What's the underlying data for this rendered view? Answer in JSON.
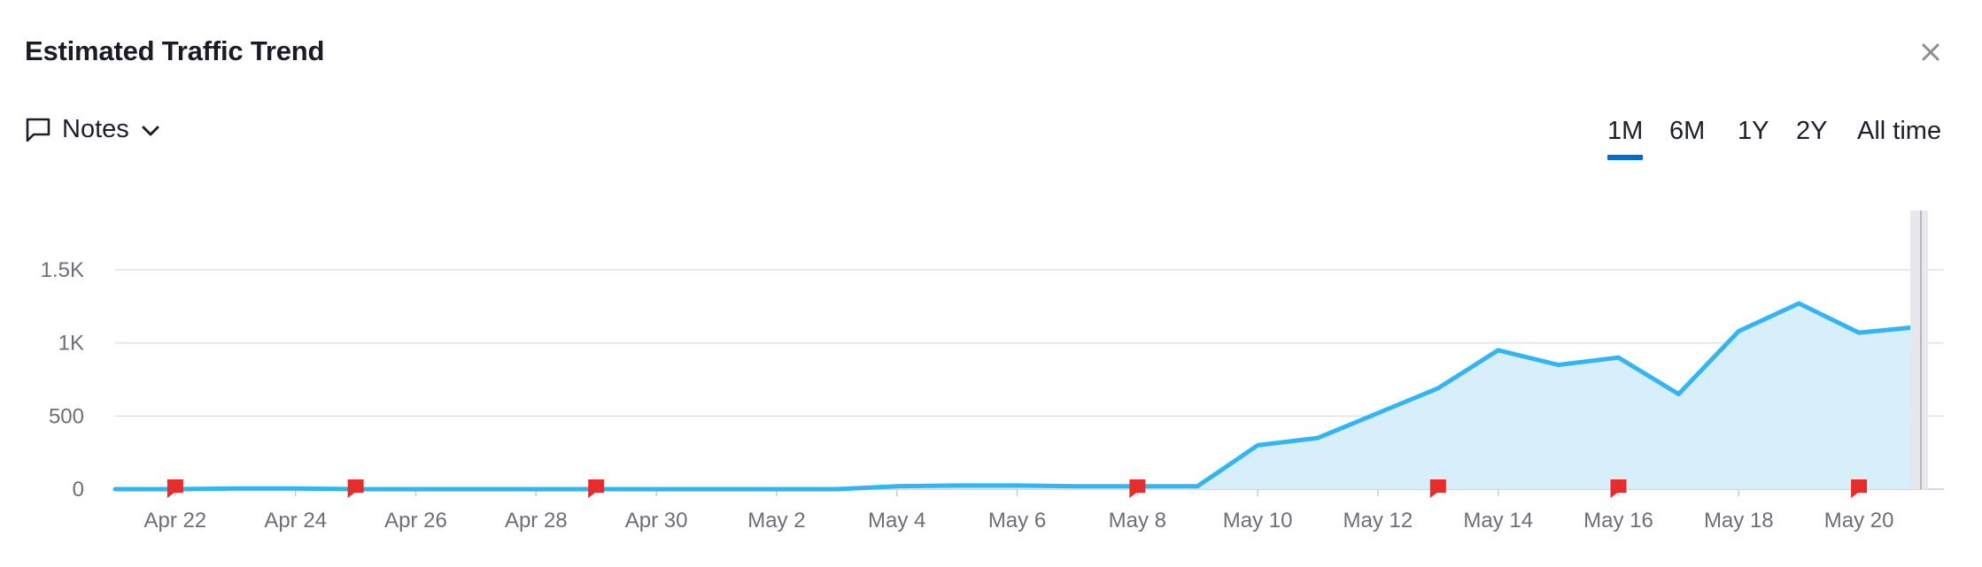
{
  "header": {
    "title": "Estimated Traffic Trend",
    "close_icon": "close-icon"
  },
  "notes": {
    "label": "Notes",
    "icon": "comment-icon",
    "chevron": "chevron-down-icon"
  },
  "ranges": {
    "items": [
      {
        "label": "1M",
        "active": true
      },
      {
        "label": "6M",
        "active": false
      },
      {
        "label": "1Y",
        "active": false
      },
      {
        "label": "2Y",
        "active": false
      },
      {
        "label": "All time",
        "active": false
      }
    ],
    "active_color": "#006dca"
  },
  "chart_data": {
    "type": "area",
    "title": "",
    "xlabel": "",
    "ylabel": "",
    "ylim": [
      0,
      1500
    ],
    "y_ticks": [
      0,
      500,
      1000,
      1500
    ],
    "y_tick_labels": [
      "0",
      "500",
      "1K",
      "1.5K"
    ],
    "x_tick_labels": [
      "Apr 22",
      "Apr 24",
      "Apr 26",
      "Apr 28",
      "Apr 30",
      "May 2",
      "May 4",
      "May 6",
      "May 8",
      "May 10",
      "May 12",
      "May 14",
      "May 16",
      "May 18",
      "May 20"
    ],
    "grid": true,
    "series": [
      {
        "x": [
          "Apr 21",
          "Apr 22",
          "Apr 23",
          "Apr 24",
          "Apr 25",
          "Apr 26",
          "Apr 27",
          "Apr 28",
          "Apr 29",
          "Apr 30",
          "May 1",
          "May 2",
          "May 3",
          "May 4",
          "May 5",
          "May 6",
          "May 7",
          "May 8",
          "May 9",
          "May 10",
          "May 11",
          "May 12",
          "May 13",
          "May 14",
          "May 15",
          "May 16",
          "May 17",
          "May 18",
          "May 19",
          "May 20",
          "May 21"
        ],
        "values": [
          0,
          0,
          5,
          5,
          0,
          0,
          0,
          0,
          0,
          0,
          0,
          0,
          0,
          20,
          25,
          25,
          20,
          20,
          20,
          300,
          350,
          520,
          690,
          950,
          850,
          900,
          650,
          1080,
          1270,
          1070,
          1110
        ],
        "color": "#33b4f4",
        "fill": "#d5edfb"
      }
    ],
    "note_markers": [
      "Apr 22",
      "Apr 25",
      "Apr 29",
      "May 8",
      "May 13",
      "May 16",
      "May 20"
    ],
    "note_marker_color": "#e72c2c",
    "hover_date": "May 21"
  }
}
